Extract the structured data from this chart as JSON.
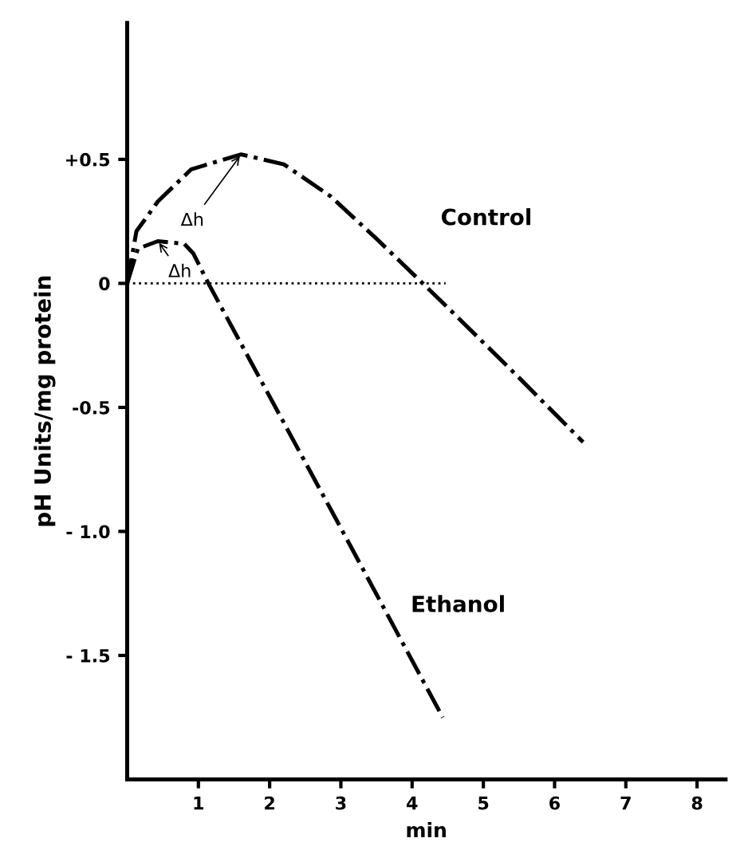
{
  "chart_data": {
    "type": "line",
    "xlabel": "min",
    "ylabel": "pH Units/mg protein",
    "xlim": [
      0,
      8.4
    ],
    "ylim": [
      -2.0,
      1.05
    ],
    "xticks": [
      1,
      2,
      3,
      4,
      5,
      6,
      7,
      8
    ],
    "yticks": [
      {
        "value": 0.5,
        "label": "+0.5"
      },
      0,
      {
        "value": -0.5,
        "label": "-0.5"
      },
      {
        "value": -1.0,
        "label": "- 1.0"
      },
      {
        "value": -1.5,
        "label": "- 1.5"
      }
    ],
    "grid": false,
    "legend": false,
    "marker": "none",
    "series": [
      {
        "name": "Control",
        "color": "#000000",
        "line_style": "dashdot",
        "x": [
          0,
          0.13,
          0.43,
          0.9,
          1.6,
          2.2,
          2.86,
          3.5,
          4.15,
          4.58,
          5.5,
          6.4
        ],
        "values": [
          0,
          0.21,
          0.33,
          0.46,
          0.52,
          0.48,
          0.35,
          0.18,
          0,
          -0.12,
          -0.38,
          -0.64
        ]
      },
      {
        "name": "Ethanol",
        "color": "#000000",
        "line_style": "dashdot",
        "x": [
          0,
          0.15,
          0.43,
          0.8,
          0.93,
          1.14,
          2.95,
          4.43
        ],
        "values": [
          0,
          0.14,
          0.17,
          0.16,
          0.12,
          0,
          -0.96,
          -1.75
        ]
      },
      {
        "color": "#000000",
        "line_style": "dotted",
        "x": [
          0,
          4.47
        ],
        "values": [
          0,
          0
        ]
      }
    ],
    "annotations": [
      {
        "text": "Δh",
        "x": 1.6,
        "y": 0.52
      },
      {
        "text": "Δh",
        "x": 0.43,
        "y": 0.17
      }
    ]
  }
}
